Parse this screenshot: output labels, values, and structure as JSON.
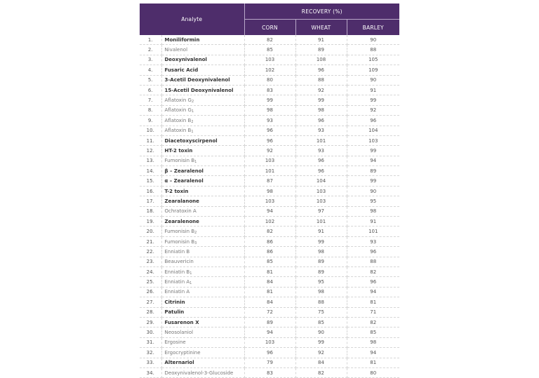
{
  "header": {
    "analyte": "Analyte",
    "recovery": "RECOVERY (%)",
    "columns": [
      "CORN",
      "WHEAT",
      "BARLEY"
    ]
  },
  "colors": {
    "header_bg": "#4e2d6b",
    "header_text": "#ffffff"
  },
  "rows": [
    {
      "no": "1.",
      "name": "Moniliformin",
      "sub": "",
      "style": "bold",
      "corn": "82",
      "wheat": "91",
      "barley": "90"
    },
    {
      "no": "2.",
      "name": "Nivalenol",
      "sub": "",
      "style": "light",
      "corn": "85",
      "wheat": "89",
      "barley": "88"
    },
    {
      "no": "3.",
      "name": "Deoxynivalenol",
      "sub": "",
      "style": "bold",
      "corn": "103",
      "wheat": "108",
      "barley": "105"
    },
    {
      "no": "4.",
      "name": "Fusaric Acid",
      "sub": "",
      "style": "bold",
      "corn": "102",
      "wheat": "96",
      "barley": "109"
    },
    {
      "no": "5.",
      "name": "3-Acetil Deoxynivalenol",
      "sub": "",
      "style": "bold",
      "corn": "80",
      "wheat": "88",
      "barley": "90"
    },
    {
      "no": "6.",
      "name": "15-Acetil Deoxynivalenol",
      "sub": "",
      "style": "bold",
      "corn": "83",
      "wheat": "92",
      "barley": "91"
    },
    {
      "no": "7.",
      "name": "Aflatoxin G",
      "sub": "2",
      "style": "light",
      "corn": "99",
      "wheat": "99",
      "barley": "99"
    },
    {
      "no": "8.",
      "name": "Aflatoxin G",
      "sub": "1",
      "style": "light",
      "corn": "98",
      "wheat": "98",
      "barley": "92"
    },
    {
      "no": "9.",
      "name": "Aflatoxin B",
      "sub": "2",
      "style": "light",
      "corn": "93",
      "wheat": "96",
      "barley": "96"
    },
    {
      "no": "10.",
      "name": "Aflatoxin B",
      "sub": "1",
      "style": "light",
      "corn": "96",
      "wheat": "93",
      "barley": "104"
    },
    {
      "no": "11.",
      "name": "Diacetoxyscirpenol",
      "sub": "",
      "style": "bold",
      "corn": "96",
      "wheat": "101",
      "barley": "103"
    },
    {
      "no": "12.",
      "name": "HT-2 toxin",
      "sub": "",
      "style": "bold",
      "corn": "92",
      "wheat": "93",
      "barley": "99"
    },
    {
      "no": "13.",
      "name": "Fumonisin B",
      "sub": "1",
      "style": "light",
      "corn": "103",
      "wheat": "96",
      "barley": "94"
    },
    {
      "no": "14.",
      "name": "β – Zearalenol",
      "sub": "",
      "style": "bold",
      "corn": "101",
      "wheat": "96",
      "barley": "89"
    },
    {
      "no": "15.",
      "name": "α – Zearalenol",
      "sub": "",
      "style": "bold",
      "corn": "87",
      "wheat": "104",
      "barley": "99"
    },
    {
      "no": "16.",
      "name": "T-2 toxin",
      "sub": "",
      "style": "bold",
      "corn": "98",
      "wheat": "103",
      "barley": "90"
    },
    {
      "no": "17.",
      "name": "Zearalanone",
      "sub": "",
      "style": "bold",
      "corn": "103",
      "wheat": "103",
      "barley": "95"
    },
    {
      "no": "18.",
      "name": "Ochratoxin A",
      "sub": "",
      "style": "light",
      "corn": "94",
      "wheat": "97",
      "barley": "98"
    },
    {
      "no": "19.",
      "name": "Zearalenone",
      "sub": "",
      "style": "bold",
      "corn": "102",
      "wheat": "101",
      "barley": "91"
    },
    {
      "no": "20.",
      "name": "Fumonisin B",
      "sub": "2",
      "style": "light",
      "corn": "82",
      "wheat": "91",
      "barley": "101"
    },
    {
      "no": "21.",
      "name": "Fumonisin B",
      "sub": "3",
      "style": "light",
      "corn": "86",
      "wheat": "99",
      "barley": "93"
    },
    {
      "no": "22.",
      "name": "Enniatin B",
      "sub": "",
      "style": "light",
      "corn": "86",
      "wheat": "98",
      "barley": "96"
    },
    {
      "no": "23.",
      "name": "Beauvericin",
      "sub": "",
      "style": "light",
      "corn": "85",
      "wheat": "89",
      "barley": "88"
    },
    {
      "no": "24.",
      "name": "Enniatin B",
      "sub": "1",
      "style": "light",
      "corn": "81",
      "wheat": "89",
      "barley": "82"
    },
    {
      "no": "25.",
      "name": "Enniatin A",
      "sub": "1",
      "style": "light",
      "corn": "84",
      "wheat": "95",
      "barley": "96"
    },
    {
      "no": "26.",
      "name": "Enniatin A",
      "sub": "",
      "style": "light",
      "corn": "81",
      "wheat": "98",
      "barley": "94"
    },
    {
      "no": "27.",
      "name": "Citrinin",
      "sub": "",
      "style": "bold",
      "corn": "84",
      "wheat": "88",
      "barley": "81"
    },
    {
      "no": "28.",
      "name": "Patulin",
      "sub": "",
      "style": "bold",
      "corn": "72",
      "wheat": "75",
      "barley": "71"
    },
    {
      "no": "29.",
      "name": "Fusarenon X",
      "sub": "",
      "style": "bold",
      "corn": "89",
      "wheat": "85",
      "barley": "82"
    },
    {
      "no": "30.",
      "name": "Neosolaniol",
      "sub": "",
      "style": "light",
      "corn": "94",
      "wheat": "90",
      "barley": "85"
    },
    {
      "no": "31.",
      "name": "Ergosine",
      "sub": "",
      "style": "light",
      "corn": "103",
      "wheat": "99",
      "barley": "98"
    },
    {
      "no": "32.",
      "name": "Ergocryptinine",
      "sub": "",
      "style": "light",
      "corn": "96",
      "wheat": "92",
      "barley": "94"
    },
    {
      "no": "33.",
      "name": "Alternariol",
      "sub": "",
      "style": "bold",
      "corn": "79",
      "wheat": "84",
      "barley": "81"
    },
    {
      "no": "34.",
      "name": "Deoxynivalenol-3-Glucoside",
      "sub": "",
      "style": "light",
      "corn": "83",
      "wheat": "82",
      "barley": "80"
    }
  ]
}
